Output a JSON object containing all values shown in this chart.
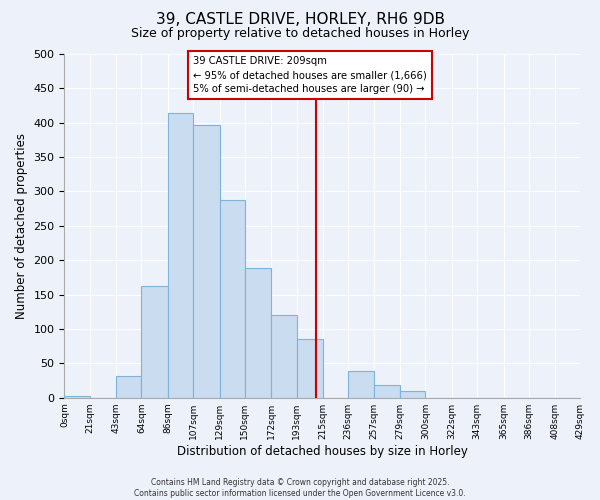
{
  "title": "39, CASTLE DRIVE, HORLEY, RH6 9DB",
  "subtitle": "Size of property relative to detached houses in Horley",
  "xlabel": "Distribution of detached houses by size in Horley",
  "ylabel": "Number of detached properties",
  "bar_edges": [
    0,
    21,
    43,
    64,
    86,
    107,
    129,
    150,
    172,
    193,
    215,
    236,
    257,
    279,
    300,
    322,
    343,
    365,
    386,
    408,
    429
  ],
  "bar_heights": [
    3,
    0,
    31,
    163,
    414,
    396,
    287,
    188,
    120,
    85,
    0,
    39,
    19,
    10,
    0,
    0,
    0,
    0,
    0,
    0
  ],
  "bar_color": "#c9dcf0",
  "bar_edgecolor": "#7fb3d9",
  "vline_x": 209,
  "vline_color": "#cc0000",
  "ylim": [
    0,
    500
  ],
  "yticks": [
    0,
    50,
    100,
    150,
    200,
    250,
    300,
    350,
    400,
    450,
    500
  ],
  "xtick_labels": [
    "0sqm",
    "21sqm",
    "43sqm",
    "64sqm",
    "86sqm",
    "107sqm",
    "129sqm",
    "150sqm",
    "172sqm",
    "193sqm",
    "215sqm",
    "236sqm",
    "257sqm",
    "279sqm",
    "300sqm",
    "322sqm",
    "343sqm",
    "365sqm",
    "386sqm",
    "408sqm",
    "429sqm"
  ],
  "annotation_title": "39 CASTLE DRIVE: 209sqm",
  "annotation_line1": "← 95% of detached houses are smaller (1,666)",
  "annotation_line2": "5% of semi-detached houses are larger (90) →",
  "annotation_box_color": "#cc0000",
  "annotation_bg": "#ffffff",
  "footer1": "Contains HM Land Registry data © Crown copyright and database right 2025.",
  "footer2": "Contains public sector information licensed under the Open Government Licence v3.0.",
  "bg_color": "#edf2fa",
  "plot_bg_color": "#edf2fa",
  "grid_color": "#ffffff"
}
